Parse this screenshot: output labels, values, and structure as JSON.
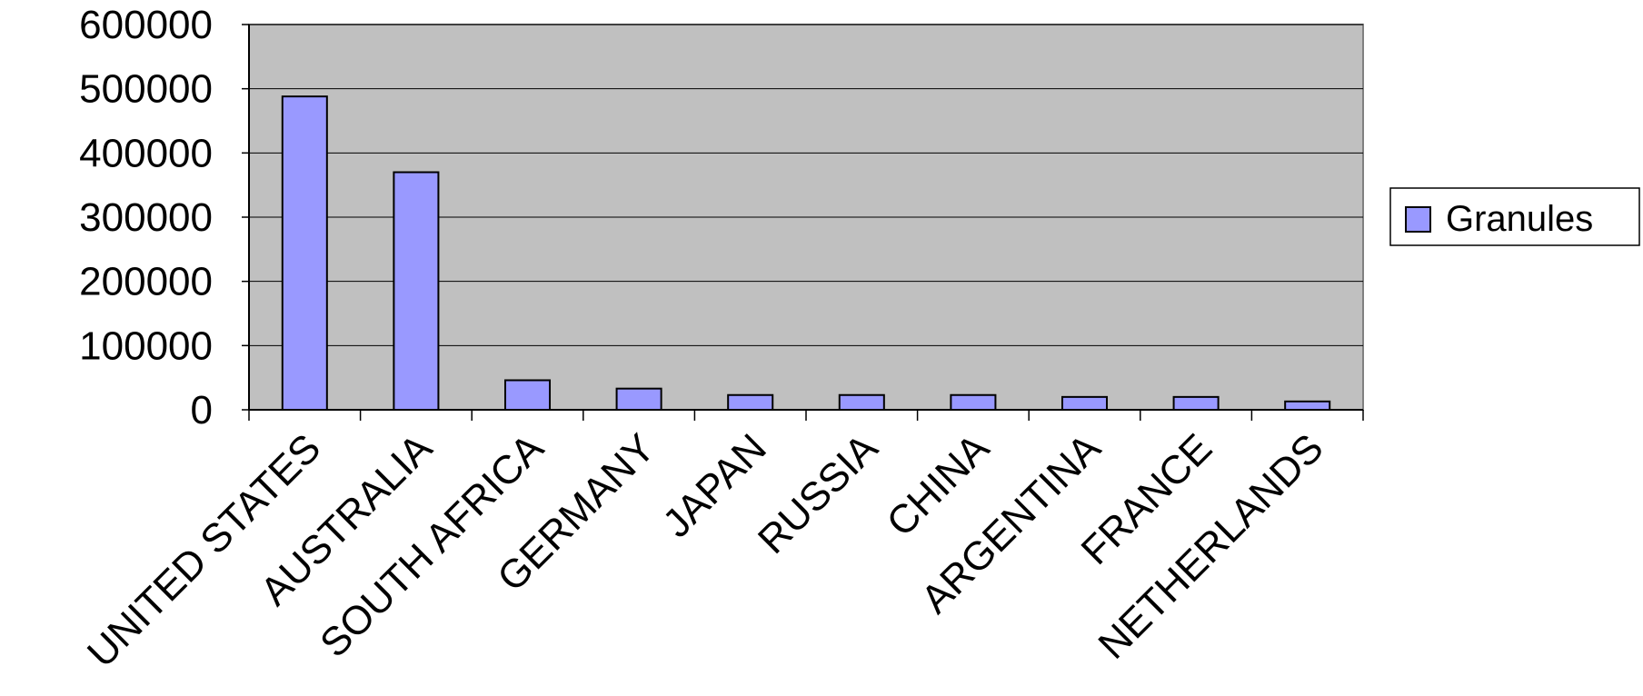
{
  "chart_data": {
    "type": "bar",
    "categories": [
      "UNITED STATES",
      "AUSTRALIA",
      "SOUTH AFRICA",
      "GERMANY",
      "JAPAN",
      "RUSSIA",
      "CHINA",
      "ARGENTINA",
      "FRANCE",
      "NETHERLANDS"
    ],
    "series": [
      {
        "name": "Granules",
        "values": [
          488000,
          370000,
          46000,
          33000,
          23000,
          23000,
          23000,
          20000,
          20000,
          13000
        ]
      }
    ],
    "yticks": [
      "0",
      "100000",
      "200000",
      "300000",
      "400000",
      "500000",
      "600000"
    ],
    "ylim": [
      0,
      600000
    ],
    "grid": true,
    "legend_position": "right",
    "colors": {
      "bar": "#9999ff",
      "plot_bg": "#c0c0c0",
      "border": "#000000"
    }
  }
}
